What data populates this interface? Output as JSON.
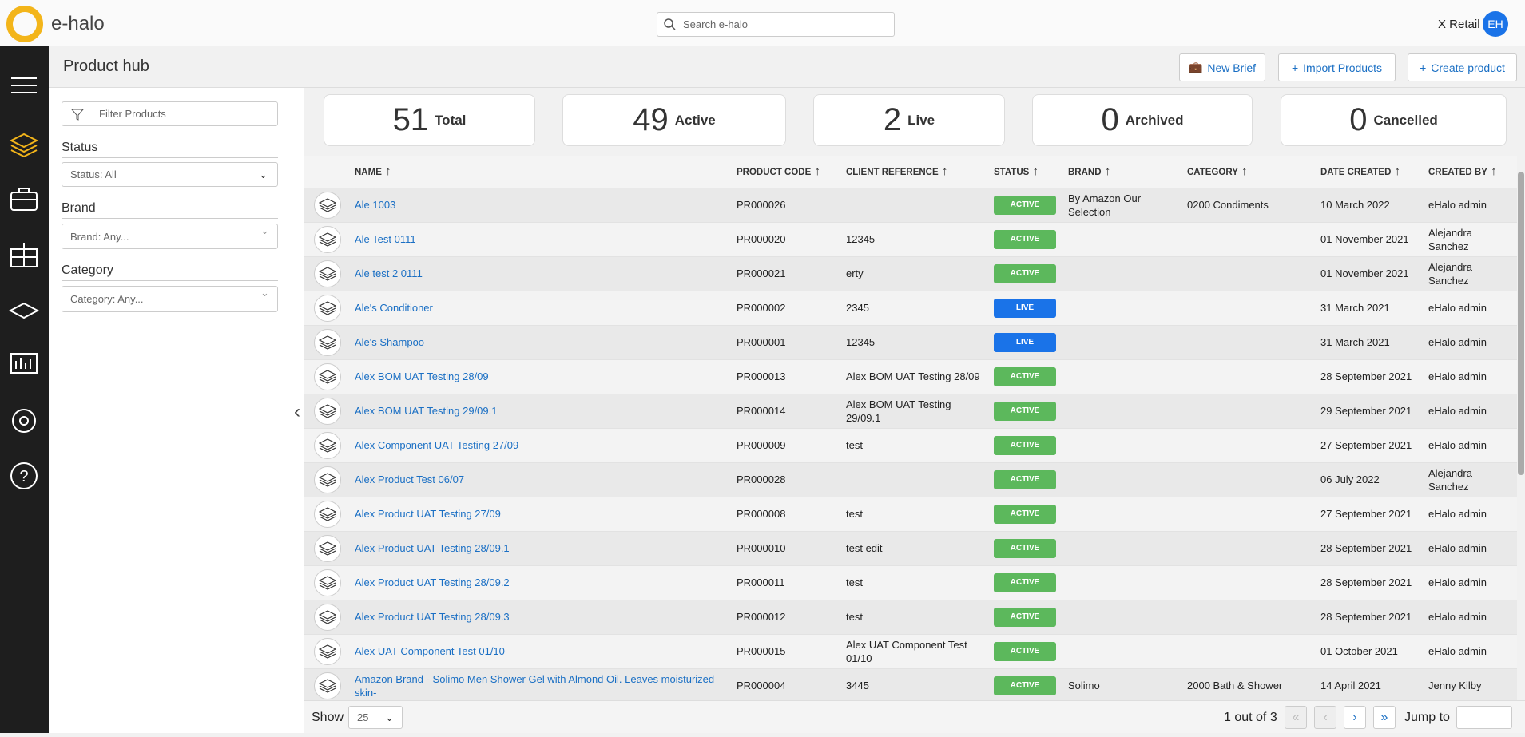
{
  "header": {
    "logo_text": "e-halo",
    "search_placeholder": "Search e-halo",
    "account": "X Retail",
    "avatar": "EH"
  },
  "page": {
    "title": "Product hub",
    "buttons": [
      "New Brief",
      "Import Products",
      "Create product"
    ]
  },
  "filters": {
    "placeholder": "Filter Products",
    "status_label": "Status",
    "status_value": "Status: All",
    "brand_label": "Brand",
    "brand_placeholder": "Brand: Any...",
    "category_label": "Category",
    "category_placeholder": "Category: Any..."
  },
  "stats": [
    {
      "value": 51,
      "label": "Total"
    },
    {
      "value": 49,
      "label": "Active"
    },
    {
      "value": 2,
      "label": "Live"
    },
    {
      "value": 0,
      "label": "Archived"
    },
    {
      "value": 0,
      "label": "Cancelled"
    }
  ],
  "table": {
    "columns": [
      "NAME",
      "PRODUCT CODE",
      "CLIENT REFERENCE",
      "STATUS",
      "BRAND",
      "CATEGORY",
      "DATE CREATED",
      "CREATED BY"
    ],
    "rows": [
      [
        "Ale 1003",
        "PR000026",
        null,
        "ACTIVE",
        "By Amazon Our Selection",
        "0200 Condiments",
        "10 March 2022",
        "eHalo admin"
      ],
      [
        "Ale Test 0111",
        "PR000020",
        "12345",
        "ACTIVE",
        null,
        null,
        "01 November 2021",
        "Alejandra Sanchez"
      ],
      [
        "Ale test 2 0111",
        "PR000021",
        "erty",
        "ACTIVE",
        null,
        null,
        "01 November 2021",
        "Alejandra Sanchez"
      ],
      [
        "Ale's Conditioner",
        "PR000002",
        "2345",
        "LIVE",
        null,
        null,
        "31 March 2021",
        "eHalo admin"
      ],
      [
        "Ale's Shampoo",
        "PR000001",
        "12345",
        "LIVE",
        null,
        null,
        "31 March 2021",
        "eHalo admin"
      ],
      [
        "Alex BOM UAT Testing 28/09",
        "PR000013",
        "Alex BOM UAT Testing 28/09",
        "ACTIVE",
        null,
        null,
        "28 September 2021",
        "eHalo admin"
      ],
      [
        "Alex BOM UAT Testing 29/09.1",
        "PR000014",
        "Alex BOM UAT Testing 29/09.1",
        "ACTIVE",
        null,
        null,
        "29 September 2021",
        "eHalo admin"
      ],
      [
        "Alex Component UAT Testing 27/09",
        "PR000009",
        "test",
        "ACTIVE",
        null,
        null,
        "27 September 2021",
        "eHalo admin"
      ],
      [
        "Alex Product Test 06/07",
        "PR000028",
        null,
        "ACTIVE",
        null,
        null,
        "06 July 2022",
        "Alejandra Sanchez"
      ],
      [
        "Alex Product UAT Testing 27/09",
        "PR000008",
        "test",
        "ACTIVE",
        null,
        null,
        "27 September 2021",
        "eHalo admin"
      ],
      [
        "Alex Product UAT Testing 28/09.1",
        "PR000010",
        "test edit",
        "ACTIVE",
        null,
        null,
        "28 September 2021",
        "eHalo admin"
      ],
      [
        "Alex Product UAT Testing 28/09.2",
        "PR000011",
        "test",
        "ACTIVE",
        null,
        null,
        "28 September 2021",
        "eHalo admin"
      ],
      [
        "Alex Product UAT Testing 28/09.3",
        "PR000012",
        "test",
        "ACTIVE",
        null,
        null,
        "28 September 2021",
        "eHalo admin"
      ],
      [
        "Alex UAT Component Test 01/10",
        "PR000015",
        "Alex UAT Component Test 01/10",
        "ACTIVE",
        null,
        null,
        "01 October 2021",
        "eHalo admin"
      ],
      [
        "Amazon Brand - Solimo Men Shower Gel with Almond Oil. Leaves moisturized skin-",
        "PR000004",
        "3445",
        "ACTIVE",
        "Solimo",
        "2000 Bath & Shower",
        "14 April 2021",
        "Jenny Kilby"
      ]
    ]
  },
  "footer": {
    "show_label": "Show",
    "page_size": "25",
    "page_info": "1 out of 3",
    "jump_label": "Jump to"
  }
}
